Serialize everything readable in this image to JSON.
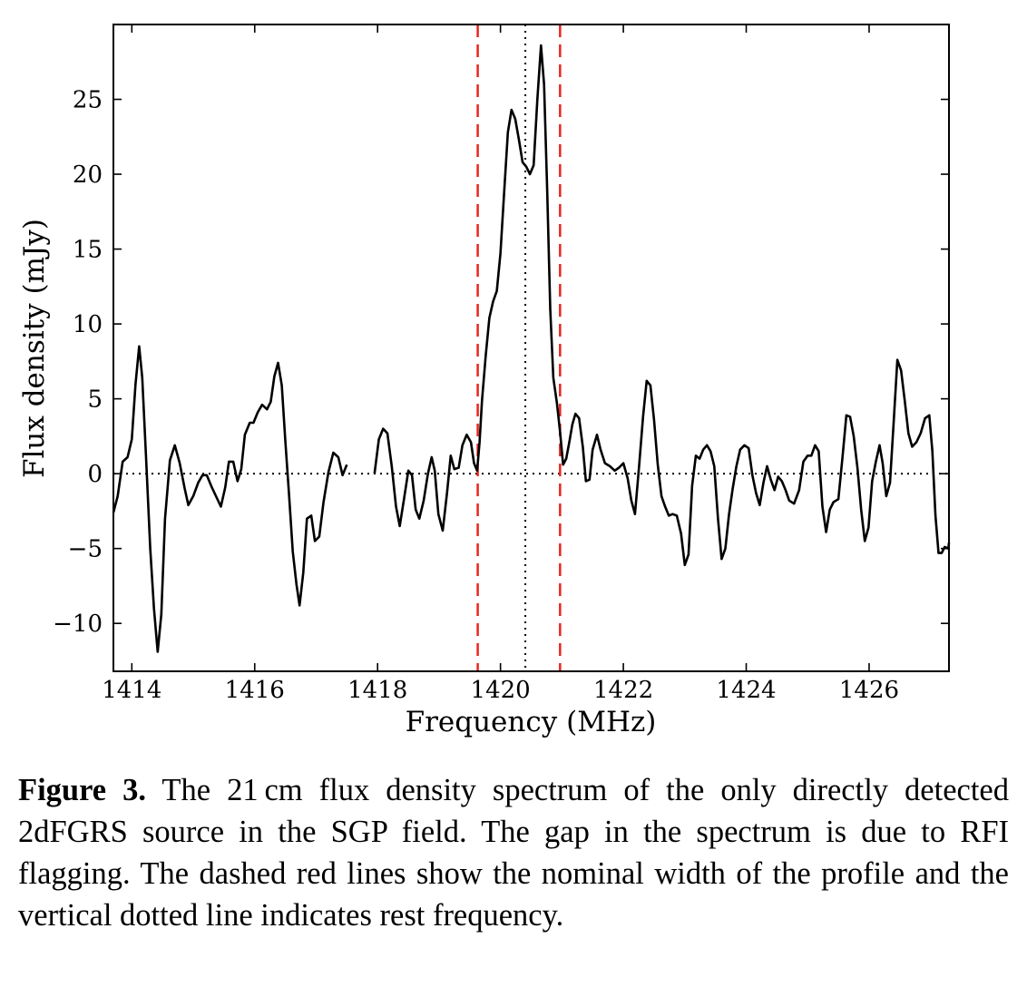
{
  "chart_data": {
    "type": "line",
    "xlabel": "Frequency (MHz)",
    "ylabel": "Flux density (mJy)",
    "xlim": [
      1413.7,
      1427.3
    ],
    "ylim": [
      -13.2,
      30
    ],
    "x_ticks": [
      1414,
      1416,
      1418,
      1420,
      1422,
      1424,
      1426
    ],
    "x_tick_labels": [
      "1414",
      "1416",
      "1418",
      "1420",
      "1422",
      "1424",
      "1426"
    ],
    "y_ticks": [
      -10,
      -5,
      0,
      5,
      10,
      15,
      20,
      25
    ],
    "y_tick_labels": [
      "−10",
      "−5",
      "0",
      "5",
      "10",
      "15",
      "20",
      "25"
    ],
    "grid": false,
    "series": [
      {
        "color": "#000000",
        "segments": [
          [
            [
              1413.7,
              -2.6
            ],
            [
              1413.77,
              -1.5
            ],
            [
              1413.85,
              0.8
            ],
            [
              1413.93,
              1.1
            ],
            [
              1414.0,
              2.3
            ],
            [
              1414.06,
              6.0
            ],
            [
              1414.12,
              8.5
            ],
            [
              1414.17,
              6.4
            ],
            [
              1414.23,
              1.2
            ],
            [
              1414.3,
              -5.0
            ],
            [
              1414.36,
              -9.0
            ],
            [
              1414.42,
              -11.9
            ],
            [
              1414.48,
              -9.4
            ],
            [
              1414.54,
              -3.0
            ],
            [
              1414.62,
              0.9
            ],
            [
              1414.7,
              1.9
            ],
            [
              1414.78,
              0.7
            ],
            [
              1414.86,
              -1.0
            ],
            [
              1414.92,
              -2.1
            ],
            [
              1415.0,
              -1.5
            ],
            [
              1415.08,
              -0.6
            ],
            [
              1415.15,
              -0.1
            ],
            [
              1415.22,
              -0.1
            ],
            [
              1415.3,
              -0.9
            ],
            [
              1415.38,
              -1.6
            ],
            [
              1415.45,
              -2.2
            ],
            [
              1415.52,
              -0.9
            ],
            [
              1415.58,
              0.8
            ],
            [
              1415.65,
              0.8
            ],
            [
              1415.72,
              -0.5
            ],
            [
              1415.78,
              0.3
            ],
            [
              1415.84,
              2.6
            ],
            [
              1415.92,
              3.4
            ],
            [
              1415.98,
              3.4
            ],
            [
              1416.05,
              4.1
            ],
            [
              1416.12,
              4.6
            ],
            [
              1416.2,
              4.3
            ],
            [
              1416.26,
              4.8
            ],
            [
              1416.32,
              6.5
            ],
            [
              1416.38,
              7.4
            ],
            [
              1416.44,
              5.9
            ],
            [
              1416.5,
              2.1
            ],
            [
              1416.56,
              -1.5
            ],
            [
              1416.62,
              -5.2
            ],
            [
              1416.68,
              -7.4
            ],
            [
              1416.73,
              -8.8
            ],
            [
              1416.79,
              -6.6
            ],
            [
              1416.85,
              -3.0
            ],
            [
              1416.92,
              -2.8
            ],
            [
              1416.98,
              -4.5
            ],
            [
              1417.05,
              -4.2
            ],
            [
              1417.12,
              -1.9
            ],
            [
              1417.2,
              0.1
            ],
            [
              1417.28,
              1.4
            ],
            [
              1417.36,
              1.1
            ],
            [
              1417.43,
              -0.1
            ],
            [
              1417.5,
              0.6
            ]
          ],
          [
            [
              1417.95,
              0.0
            ],
            [
              1418.02,
              2.3
            ],
            [
              1418.09,
              3.0
            ],
            [
              1418.16,
              2.7
            ],
            [
              1418.23,
              0.5
            ],
            [
              1418.3,
              -2.2
            ],
            [
              1418.36,
              -3.5
            ],
            [
              1418.43,
              -1.7
            ],
            [
              1418.5,
              0.2
            ],
            [
              1418.56,
              -0.1
            ],
            [
              1418.62,
              -2.4
            ],
            [
              1418.68,
              -3.0
            ],
            [
              1418.75,
              -1.8
            ],
            [
              1418.82,
              0.0
            ],
            [
              1418.88,
              1.1
            ],
            [
              1418.93,
              0.2
            ],
            [
              1418.99,
              -2.7
            ],
            [
              1419.06,
              -3.8
            ],
            [
              1419.13,
              -1.3
            ],
            [
              1419.19,
              1.2
            ],
            [
              1419.25,
              0.3
            ],
            [
              1419.32,
              0.4
            ],
            [
              1419.38,
              1.9
            ],
            [
              1419.45,
              2.6
            ],
            [
              1419.52,
              2.1
            ],
            [
              1419.57,
              0.7
            ],
            [
              1419.62,
              0.2
            ],
            [
              1419.66,
              2.1
            ],
            [
              1419.7,
              4.9
            ],
            [
              1419.76,
              7.9
            ],
            [
              1419.82,
              10.4
            ],
            [
              1419.88,
              11.5
            ],
            [
              1419.94,
              12.2
            ],
            [
              1420.0,
              14.7
            ],
            [
              1420.06,
              18.8
            ],
            [
              1420.12,
              22.8
            ],
            [
              1420.18,
              24.3
            ],
            [
              1420.24,
              23.7
            ],
            [
              1420.3,
              22.3
            ],
            [
              1420.36,
              20.8
            ],
            [
              1420.42,
              20.5
            ],
            [
              1420.48,
              20.0
            ],
            [
              1420.54,
              20.6
            ],
            [
              1420.6,
              25.0
            ],
            [
              1420.66,
              28.6
            ],
            [
              1420.71,
              26.0
            ],
            [
              1420.76,
              19.0
            ],
            [
              1420.81,
              11.0
            ],
            [
              1420.86,
              6.4
            ],
            [
              1420.92,
              4.7
            ],
            [
              1420.97,
              2.8
            ],
            [
              1421.02,
              0.6
            ],
            [
              1421.07,
              1.0
            ],
            [
              1421.12,
              2.1
            ],
            [
              1421.17,
              3.3
            ],
            [
              1421.22,
              4.0
            ],
            [
              1421.28,
              3.7
            ],
            [
              1421.34,
              1.8
            ],
            [
              1421.39,
              -0.5
            ],
            [
              1421.45,
              -0.4
            ],
            [
              1421.5,
              1.6
            ],
            [
              1421.57,
              2.6
            ],
            [
              1421.63,
              1.6
            ],
            [
              1421.7,
              0.7
            ],
            [
              1421.78,
              0.5
            ],
            [
              1421.86,
              0.2
            ],
            [
              1421.93,
              0.4
            ],
            [
              1422.0,
              0.7
            ],
            [
              1422.07,
              -0.3
            ],
            [
              1422.13,
              -1.8
            ],
            [
              1422.19,
              -2.7
            ],
            [
              1422.26,
              0.7
            ],
            [
              1422.32,
              3.8
            ],
            [
              1422.38,
              6.2
            ],
            [
              1422.44,
              5.9
            ],
            [
              1422.5,
              3.6
            ],
            [
              1422.56,
              0.6
            ],
            [
              1422.62,
              -1.5
            ],
            [
              1422.68,
              -2.2
            ],
            [
              1422.74,
              -2.8
            ],
            [
              1422.8,
              -2.7
            ],
            [
              1422.87,
              -2.8
            ],
            [
              1422.94,
              -4.0
            ],
            [
              1423.0,
              -6.1
            ],
            [
              1423.06,
              -5.4
            ],
            [
              1423.12,
              -0.8
            ],
            [
              1423.18,
              1.2
            ],
            [
              1423.24,
              1.0
            ],
            [
              1423.3,
              1.6
            ],
            [
              1423.36,
              1.9
            ],
            [
              1423.42,
              1.5
            ],
            [
              1423.48,
              0.5
            ],
            [
              1423.54,
              -3.0
            ],
            [
              1423.6,
              -5.7
            ],
            [
              1423.66,
              -5.0
            ],
            [
              1423.72,
              -2.7
            ],
            [
              1423.78,
              -1.0
            ],
            [
              1423.84,
              0.5
            ],
            [
              1423.9,
              1.6
            ],
            [
              1423.97,
              1.9
            ],
            [
              1424.04,
              1.7
            ],
            [
              1424.1,
              -0.1
            ],
            [
              1424.16,
              -1.3
            ],
            [
              1424.22,
              -2.1
            ],
            [
              1424.28,
              -0.6
            ],
            [
              1424.34,
              0.5
            ],
            [
              1424.4,
              -0.4
            ],
            [
              1424.46,
              -1.1
            ],
            [
              1424.52,
              -0.2
            ],
            [
              1424.58,
              -0.5
            ],
            [
              1424.64,
              -1.1
            ],
            [
              1424.7,
              -1.8
            ],
            [
              1424.78,
              -2.0
            ],
            [
              1424.86,
              -1.1
            ],
            [
              1424.93,
              0.8
            ],
            [
              1425.0,
              1.2
            ],
            [
              1425.06,
              1.2
            ],
            [
              1425.12,
              1.9
            ],
            [
              1425.18,
              1.5
            ],
            [
              1425.24,
              -2.2
            ],
            [
              1425.3,
              -3.9
            ],
            [
              1425.36,
              -2.4
            ],
            [
              1425.42,
              -1.9
            ],
            [
              1425.5,
              -1.7
            ],
            [
              1425.57,
              1.2
            ],
            [
              1425.63,
              3.9
            ],
            [
              1425.69,
              3.8
            ],
            [
              1425.75,
              2.5
            ],
            [
              1425.81,
              0.4
            ],
            [
              1425.87,
              -2.4
            ],
            [
              1425.93,
              -4.5
            ],
            [
              1425.99,
              -3.6
            ],
            [
              1426.05,
              -0.5
            ],
            [
              1426.11,
              0.8
            ],
            [
              1426.17,
              1.9
            ],
            [
              1426.22,
              0.7
            ],
            [
              1426.28,
              -1.5
            ],
            [
              1426.34,
              -0.6
            ],
            [
              1426.4,
              3.5
            ],
            [
              1426.46,
              7.6
            ],
            [
              1426.52,
              6.9
            ],
            [
              1426.58,
              4.9
            ],
            [
              1426.64,
              2.7
            ],
            [
              1426.7,
              1.8
            ],
            [
              1426.77,
              2.1
            ],
            [
              1426.84,
              2.7
            ],
            [
              1426.91,
              3.7
            ],
            [
              1426.98,
              3.9
            ],
            [
              1427.03,
              1.5
            ],
            [
              1427.08,
              -2.8
            ],
            [
              1427.13,
              -5.3
            ],
            [
              1427.18,
              -5.3
            ],
            [
              1427.23,
              -4.9
            ],
            [
              1427.29,
              -5.0
            ],
            [
              1427.3,
              -4.6
            ]
          ]
        ]
      }
    ],
    "reference_lines": {
      "horizontal_zero": 0,
      "rest_frequency": 1420.405,
      "nominal_width": [
        1419.63,
        1420.97
      ],
      "dashed_color": "#e8261e",
      "dotted_color": "#000000"
    }
  },
  "caption": {
    "label": "Figure 3.",
    "text": "The 21 cm flux density spectrum of the only directly detected 2dFGRS source in the SGP field. The gap in the spectrum is due to RFI flagging. The dashed red lines show the nominal width of the profile and the vertical dotted line indicates rest frequency."
  }
}
